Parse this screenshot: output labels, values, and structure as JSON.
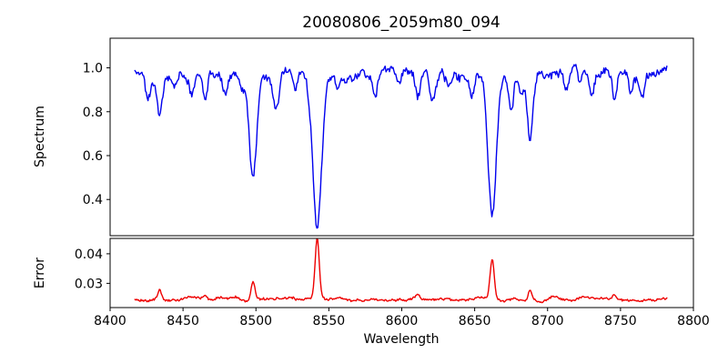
{
  "figure": {
    "background": "#ffffff",
    "spine_color": "#000000",
    "text_color": "#000000"
  },
  "chart_data": {
    "type": "line",
    "title": "20080806_2059m80_094",
    "xlabel": "Wavelength",
    "xlim": [
      8400,
      8800
    ],
    "xticks": [
      8400,
      8450,
      8500,
      8550,
      8600,
      8650,
      8700,
      8750,
      8800
    ],
    "xtick_labels": [
      "8400",
      "8450",
      "8500",
      "8550",
      "8600",
      "8650",
      "8700",
      "8750",
      "8800"
    ],
    "x_data_range": [
      8417,
      8782
    ],
    "grid": false,
    "legend": "none",
    "panels": [
      {
        "name": "spectrum",
        "ylabel": "Spectrum",
        "ylim": [
          0.235,
          1.135
        ],
        "yticks": [
          0.4,
          0.6,
          0.8,
          1.0
        ],
        "ytick_labels": [
          "0.4",
          "0.6",
          "0.8",
          "1.0"
        ],
        "color": "#0000ee",
        "continuum": 0.97,
        "noise": {
          "slow_amp": 0.016,
          "fast_amp": 0.014,
          "seed": 42
        },
        "absorption_lines": [
          {
            "center": 8426,
            "depth": 0.09,
            "sigma": 1.5
          },
          {
            "center": 8434,
            "depth": 0.17,
            "sigma": 1.8
          },
          {
            "center": 8444,
            "depth": 0.06,
            "sigma": 1.4
          },
          {
            "center": 8456,
            "depth": 0.11,
            "sigma": 1.7
          },
          {
            "center": 8465,
            "depth": 0.13,
            "sigma": 1.7
          },
          {
            "center": 8479,
            "depth": 0.09,
            "sigma": 1.5
          },
          {
            "center": 8490,
            "depth": 0.06,
            "sigma": 1.4
          },
          {
            "center": 8498,
            "depth": 0.465,
            "sigma": 2.5
          },
          {
            "center": 8514,
            "depth": 0.14,
            "sigma": 1.8
          },
          {
            "center": 8527,
            "depth": 0.07,
            "sigma": 1.5
          },
          {
            "center": 8536,
            "depth": 0.06,
            "sigma": 1.4
          },
          {
            "center": 8542,
            "depth": 0.7,
            "sigma": 3.0
          },
          {
            "center": 8556,
            "depth": 0.06,
            "sigma": 1.4
          },
          {
            "center": 8582,
            "depth": 0.09,
            "sigma": 1.5
          },
          {
            "center": 8598,
            "depth": 0.08,
            "sigma": 1.5
          },
          {
            "center": 8611,
            "depth": 0.12,
            "sigma": 1.7
          },
          {
            "center": 8621,
            "depth": 0.11,
            "sigma": 1.6
          },
          {
            "center": 8632,
            "depth": 0.06,
            "sigma": 1.4
          },
          {
            "center": 8648,
            "depth": 0.1,
            "sigma": 1.6
          },
          {
            "center": 8662,
            "depth": 0.645,
            "sigma": 2.8
          },
          {
            "center": 8675,
            "depth": 0.16,
            "sigma": 1.7
          },
          {
            "center": 8682,
            "depth": 0.1,
            "sigma": 1.5
          },
          {
            "center": 8688,
            "depth": 0.28,
            "sigma": 1.9
          },
          {
            "center": 8713,
            "depth": 0.08,
            "sigma": 1.5
          },
          {
            "center": 8722,
            "depth": 0.07,
            "sigma": 1.4
          },
          {
            "center": 8730,
            "depth": 0.1,
            "sigma": 1.5
          },
          {
            "center": 8746,
            "depth": 0.12,
            "sigma": 1.5
          },
          {
            "center": 8757,
            "depth": 0.09,
            "sigma": 1.4
          },
          {
            "center": 8765,
            "depth": 0.08,
            "sigma": 1.4
          }
        ]
      },
      {
        "name": "error",
        "ylabel": "Error",
        "ylim": [
          0.0218,
          0.0452
        ],
        "yticks": [
          0.03,
          0.04
        ],
        "ytick_labels": [
          "0.03",
          "0.04"
        ],
        "color": "#ee0000",
        "baseline": 0.0245,
        "noise": {
          "slow_amp": 0.00035,
          "fast_amp": 0.00032,
          "seed": 7
        },
        "emission_peaks": [
          {
            "center": 8434,
            "height": 0.003,
            "sigma": 1.2
          },
          {
            "center": 8465,
            "height": 0.0012,
            "sigma": 1.2
          },
          {
            "center": 8498,
            "height": 0.0068,
            "sigma": 1.4
          },
          {
            "center": 8542,
            "height": 0.0205,
            "sigma": 1.4
          },
          {
            "center": 8611,
            "height": 0.0012,
            "sigma": 1.2
          },
          {
            "center": 8662,
            "height": 0.0138,
            "sigma": 1.4
          },
          {
            "center": 8688,
            "height": 0.0032,
            "sigma": 1.2
          },
          {
            "center": 8746,
            "height": 0.0014,
            "sigma": 1.2
          }
        ]
      }
    ]
  }
}
